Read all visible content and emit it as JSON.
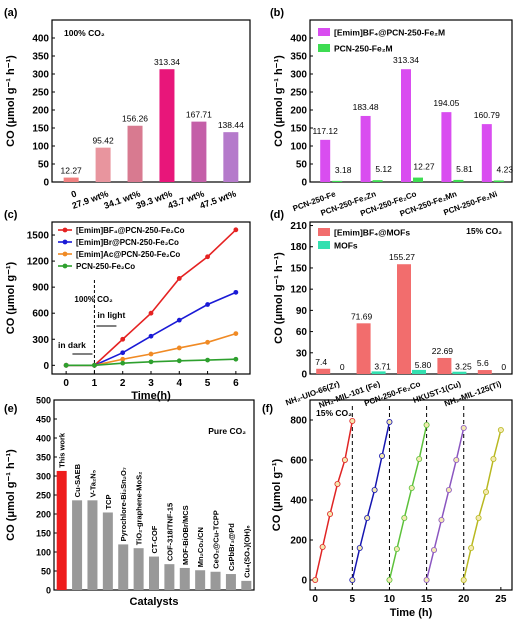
{
  "chart_data": [
    {
      "id": "a",
      "panel_label": "(a)",
      "type": "bar",
      "annotation": "100% CO₂",
      "ylabel": "CO (μmol g⁻¹ h⁻¹)",
      "ylim": [
        0,
        450
      ],
      "yticks": [
        0,
        50,
        100,
        150,
        200,
        250,
        300,
        350,
        400
      ],
      "categories": [
        "0",
        "27.9 wt%",
        "34.1 wt%",
        "39.3 wt%",
        "43.7 wt%",
        "47.5 wt%"
      ],
      "values": [
        12.27,
        95.42,
        156.26,
        313.34,
        167.71,
        138.44
      ],
      "labels": [
        "12.27",
        "95.42",
        "156.26",
        "313.34",
        "167.71",
        "138.44"
      ],
      "colors": [
        "#f08080",
        "#e8959e",
        "#d87a90",
        "#e8167a",
        "#c45fa8",
        "#b57acb"
      ]
    },
    {
      "id": "b",
      "panel_label": "(b)",
      "type": "bar",
      "ylabel": "CO (μmol g⁻¹ h⁻¹)",
      "ylim": [
        0,
        450
      ],
      "yticks": [
        0,
        50,
        100,
        150,
        200,
        250,
        300,
        350,
        400
      ],
      "categories": [
        "PCN-250-Fe",
        "PCN-250-Fe₂Zn",
        "PCN-250-Fe₂Co",
        "PCN-250-Fe₂Mn",
        "PCN-250-Fe₂Ni"
      ],
      "series": [
        {
          "name": "[Emim]BF₄@PCN-250-Fe₂M",
          "color": "#d94df0",
          "values": [
            117.12,
            183.48,
            313.34,
            194.05,
            160.79
          ],
          "labels": [
            "117.12",
            "183.48",
            "313.34",
            "194.05",
            "160.79"
          ]
        },
        {
          "name": "PCN-250-Fe₂M",
          "color": "#3ddc52",
          "values": [
            3.18,
            5.12,
            12.27,
            5.81,
            4.23
          ],
          "labels": [
            "3.18",
            "5.12",
            "12.27",
            "5.81",
            "4.23"
          ]
        }
      ]
    },
    {
      "id": "c",
      "panel_label": "(c)",
      "type": "line",
      "xlabel": "Time(h)",
      "ylabel": "CO (μmol g⁻¹)",
      "xlim": [
        -0.5,
        6.5
      ],
      "ylim": [
        -100,
        1650
      ],
      "xticks": [
        0,
        1,
        2,
        3,
        4,
        5,
        6
      ],
      "yticks": [
        0,
        300,
        600,
        900,
        1200,
        1500
      ],
      "annotations": {
        "co2": "100% CO₂",
        "dark": "in dark",
        "light": "in light"
      },
      "x": [
        0,
        1,
        2,
        3,
        4,
        5,
        6
      ],
      "series": [
        {
          "name": "[Emim]BF₄@PCN-250-Fe₂Co",
          "color": "#e52222",
          "values": [
            0,
            0,
            300,
            600,
            1000,
            1250,
            1560
          ]
        },
        {
          "name": "[Emim]Br@PCN-250-Fe₂Co",
          "color": "#1a1ad6",
          "values": [
            0,
            0,
            145,
            335,
            520,
            700,
            840
          ]
        },
        {
          "name": "[Emim]Ac@PCN-250-Fe₂Co",
          "color": "#f08a24",
          "values": [
            0,
            0,
            70,
            130,
            200,
            265,
            365
          ]
        },
        {
          "name": "PCN-250-Fe₂Co",
          "color": "#2ea02e",
          "values": [
            0,
            0,
            25,
            40,
            52,
            60,
            70
          ]
        }
      ]
    },
    {
      "id": "d",
      "panel_label": "(d)",
      "type": "bar",
      "annotation": "15% CO₂",
      "ylabel": "CO (μmol g⁻¹ h⁻¹)",
      "ylim": [
        0,
        215
      ],
      "yticks": [
        0,
        30,
        60,
        90,
        120,
        150,
        180,
        210
      ],
      "categories": [
        "NH₂-UIO-66(Zr)",
        "NH₂-MIL-101 (Fe)",
        "PCN-250-Fe₂Co",
        "HKUST-1(Cu)",
        "NH₂-MIL-125(Ti)"
      ],
      "series": [
        {
          "name": "[Emim]BF₄@MOFs",
          "color": "#f26d6d",
          "values": [
            7.4,
            71.69,
            155.27,
            22.69,
            5.6
          ],
          "labels": [
            "7.4",
            "71.69",
            "155.27",
            "22.69",
            "5.6"
          ]
        },
        {
          "name": "MOFs",
          "color": "#33e0b0",
          "values": [
            0,
            3.71,
            5.8,
            3.25,
            0
          ],
          "labels": [
            "0",
            "3.71",
            "5.80",
            "3.25",
            "0"
          ]
        }
      ]
    },
    {
      "id": "e",
      "panel_label": "(e)",
      "type": "bar",
      "annotation": "Pure CO₂",
      "xlabel": "Catalysts",
      "ylabel": "CO (μmol g⁻¹ h⁻¹)",
      "ylim": [
        0,
        500
      ],
      "yticks": [
        0,
        50,
        100,
        150,
        200,
        250,
        300,
        350,
        400,
        450,
        500
      ],
      "categories": [
        "This work",
        "Cu-SAEB",
        "V-Ta₂N₅",
        "TCP",
        "Pyrochlore-Bi₂Sn₂O₇",
        "TiO₂-graphene-MoS₂",
        "CT-COF",
        "COF-318/TNF-15",
        "MOF-BiOBr/MCS",
        "Mn₂Co₁/CN",
        "CeO₂@Cu-TCPP",
        "CsPbBr₃@Pd",
        "Cu₄(SO₄)(OH)₆"
      ],
      "values": [
        313.34,
        236,
        236,
        204,
        120,
        110,
        88,
        68,
        58,
        52,
        48,
        42,
        24
      ],
      "colors": [
        "#ee1c1c",
        "#999999",
        "#999999",
        "#999999",
        "#999999",
        "#999999",
        "#999999",
        "#999999",
        "#999999",
        "#999999",
        "#999999",
        "#999999",
        "#999999"
      ]
    },
    {
      "id": "f",
      "panel_label": "(f)",
      "type": "line",
      "annotation": "15% CO₂",
      "xlabel": "Time (h)",
      "ylabel": "CO (μmol g⁻¹)",
      "xlim": [
        -0.7,
        26.5
      ],
      "ylim": [
        -50,
        900
      ],
      "xticks": [
        0,
        5,
        10,
        15,
        20,
        25
      ],
      "yticks": [
        0,
        200,
        400,
        600,
        800
      ],
      "cycle_dividers": [
        5,
        10,
        15,
        20
      ],
      "series": [
        {
          "name": "cycle 1",
          "color": "#e02424",
          "x": [
            0,
            1,
            2,
            3,
            4,
            5
          ],
          "values": [
            0,
            165,
            330,
            480,
            600,
            795
          ]
        },
        {
          "name": "cycle 2",
          "color": "#1515b0",
          "x": [
            5,
            6,
            7,
            8,
            9,
            10
          ],
          "values": [
            0,
            160,
            310,
            450,
            620,
            790
          ]
        },
        {
          "name": "cycle 3",
          "color": "#5cc13a",
          "x": [
            10,
            11,
            12,
            13,
            14,
            15
          ],
          "values": [
            0,
            155,
            310,
            460,
            605,
            775
          ]
        },
        {
          "name": "cycle 4",
          "color": "#8a55c0",
          "x": [
            15,
            16,
            17,
            18,
            19,
            20
          ],
          "values": [
            0,
            150,
            300,
            450,
            600,
            760
          ]
        },
        {
          "name": "cycle 5",
          "color": "#b8b820",
          "x": [
            20,
            21,
            22,
            23,
            24,
            25
          ],
          "values": [
            0,
            160,
            310,
            440,
            605,
            750
          ]
        }
      ]
    }
  ]
}
